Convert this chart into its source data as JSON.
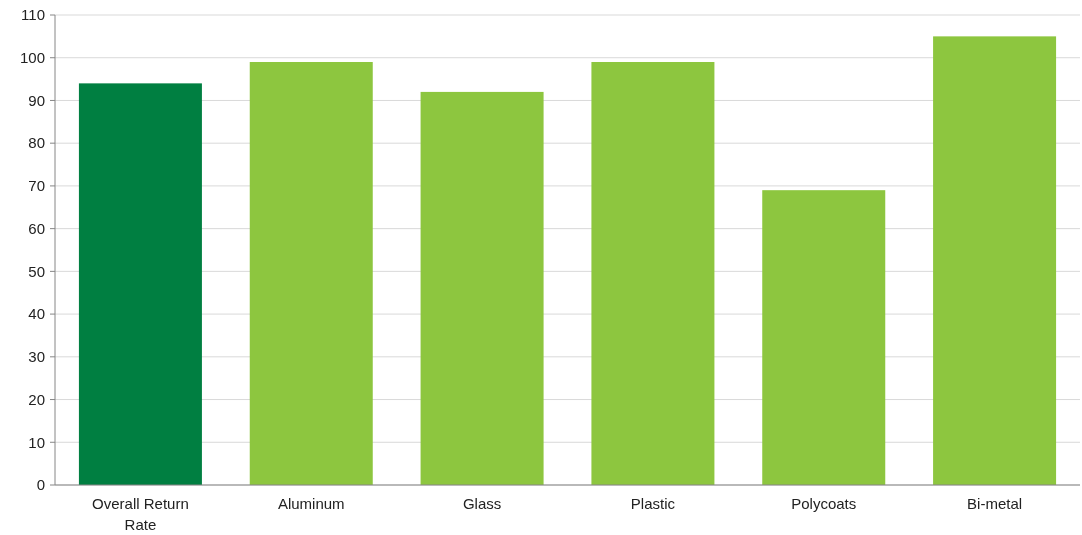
{
  "chart_data": {
    "type": "bar",
    "categories": [
      "Overall Return Rate",
      "Aluminum",
      "Glass",
      "Plastic",
      "Polycoats",
      "Bi-metal"
    ],
    "values": [
      94,
      99,
      92,
      99,
      69,
      105
    ],
    "colors": [
      "#007f41",
      "#8dc63f",
      "#8dc63f",
      "#8dc63f",
      "#8dc63f",
      "#8dc63f"
    ],
    "ylim": [
      0,
      110
    ],
    "yticks": [
      0,
      10,
      20,
      30,
      40,
      50,
      60,
      70,
      80,
      90,
      100,
      110
    ],
    "grid": "y"
  }
}
